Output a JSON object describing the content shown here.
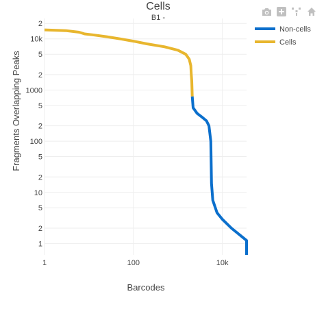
{
  "toolbar": {
    "icons": [
      "camera-icon",
      "zoom-in-icon",
      "pan-icon",
      "home-icon"
    ],
    "icon_color": "#c0c0c0"
  },
  "chart_data": {
    "type": "line",
    "title": "Cells",
    "subtitle": "B1 -",
    "xlabel": "Barcodes",
    "ylabel": "Fragments Overlapping Peaks",
    "x_scale": "log",
    "y_scale": "log",
    "xlim": [
      1,
      35000
    ],
    "ylim": [
      0.6,
      25000
    ],
    "grid": true,
    "legend_position": "top-right",
    "x_tick_labels": [
      "1",
      "100",
      "10k"
    ],
    "y_tick_labels": [
      "2",
      "10k",
      "5",
      "2",
      "1000",
      "5",
      "2",
      "100",
      "5",
      "2",
      "10",
      "5",
      "2",
      "1"
    ],
    "series": [
      {
        "name": "Non-cells",
        "color": "#0b6fcc",
        "points": [
          [
            2100,
            750
          ],
          [
            2200,
            450
          ],
          [
            2700,
            350
          ],
          [
            3400,
            300
          ],
          [
            4400,
            250
          ],
          [
            5000,
            200
          ],
          [
            5500,
            100
          ],
          [
            5600,
            40
          ],
          [
            5700,
            15
          ],
          [
            6100,
            7
          ],
          [
            7600,
            4
          ],
          [
            9900,
            3
          ],
          [
            16000,
            2
          ],
          [
            35000,
            1.15
          ],
          [
            35000,
            0.6
          ]
        ]
      },
      {
        "name": "Cells",
        "color": "#e8b62e",
        "points": [
          [
            1,
            15000
          ],
          [
            3,
            14500
          ],
          [
            6,
            13500
          ],
          [
            8,
            12500
          ],
          [
            12,
            12000
          ],
          [
            25,
            11000
          ],
          [
            50,
            10000
          ],
          [
            100,
            9000
          ],
          [
            200,
            8000
          ],
          [
            500,
            7000
          ],
          [
            1000,
            6000
          ],
          [
            1500,
            5000
          ],
          [
            1800,
            4000
          ],
          [
            1950,
            3000
          ],
          [
            2000,
            2000
          ],
          [
            2050,
            1500
          ],
          [
            2100,
            750
          ]
        ]
      }
    ]
  }
}
